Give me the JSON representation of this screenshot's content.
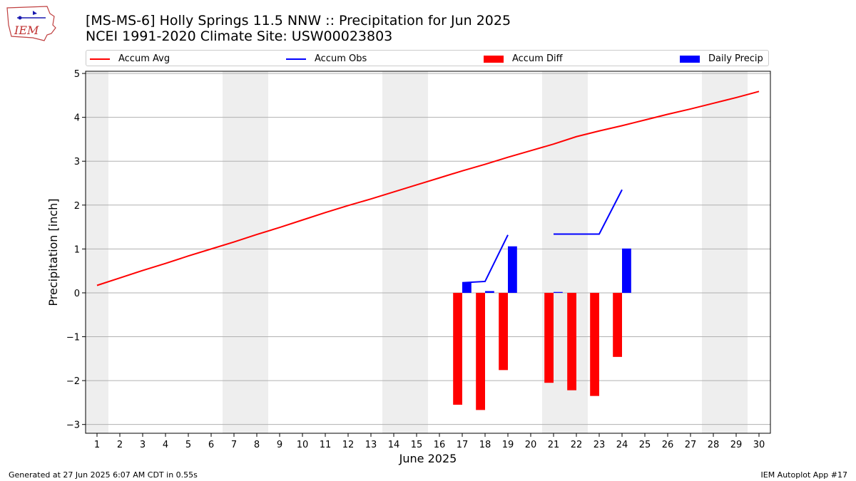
{
  "header": {
    "logo_text": "IEM",
    "title_line1": "[MS-MS-6] Holly Springs 11.5 NNW :: Precipitation for Jun 2025",
    "title_line2": "NCEI 1991-2020 Climate Site: USW00023803"
  },
  "footer": {
    "left": "Generated at 27 Jun 2025 6:07 AM CDT in 0.55s",
    "right": "IEM Autoplot App #17"
  },
  "colors": {
    "avg": "#ff0000",
    "obs": "#0000ff",
    "diff": "#ff0000",
    "daily": "#0000ff",
    "weekend": "#eeeeee",
    "grid": "#b0b0b0"
  },
  "chart_data": {
    "type": "bar",
    "xlabel": "June 2025",
    "ylabel": "Precipitation [inch]",
    "xlim": [
      0.5,
      30.5
    ],
    "ylim": [
      -3.2,
      5.05
    ],
    "yticks": [
      -3,
      -2,
      -1,
      0,
      1,
      2,
      3,
      4,
      5
    ],
    "ytick_labels": [
      "−3",
      "−2",
      "−1",
      "0",
      "1",
      "2",
      "3",
      "4",
      "5"
    ],
    "xticks": [
      1,
      2,
      3,
      4,
      5,
      6,
      7,
      8,
      9,
      10,
      11,
      12,
      13,
      14,
      15,
      16,
      17,
      18,
      19,
      20,
      21,
      22,
      23,
      24,
      25,
      26,
      27,
      28,
      29,
      30
    ],
    "grid": "horizontal",
    "legend_placement": "top",
    "weekend_spans": [
      [
        0.5,
        1.5
      ],
      [
        6.5,
        8.5
      ],
      [
        13.5,
        15.5
      ],
      [
        20.5,
        22.5
      ],
      [
        27.5,
        29.5
      ]
    ],
    "legend": {
      "avg": "Accum Avg",
      "obs": "Accum Obs",
      "diff": "Accum Diff",
      "daily": "Daily Precip"
    },
    "accum_avg": {
      "x": [
        1,
        2,
        3,
        4,
        5,
        6,
        7,
        8,
        9,
        10,
        11,
        12,
        13,
        14,
        15,
        16,
        17,
        18,
        19,
        20,
        21,
        22,
        23,
        24,
        25,
        26,
        27,
        28,
        29,
        30
      ],
      "values": [
        0.17,
        0.34,
        0.51,
        0.67,
        0.84,
        1.0,
        1.16,
        1.33,
        1.49,
        1.66,
        1.83,
        1.99,
        2.14,
        2.3,
        2.46,
        2.62,
        2.78,
        2.93,
        3.09,
        3.24,
        3.39,
        3.56,
        3.69,
        3.81,
        3.94,
        4.07,
        4.19,
        4.32,
        4.45,
        4.59
      ]
    },
    "accum_obs": [
      {
        "x": [
          17,
          18,
          19
        ],
        "values": [
          0.23,
          0.26,
          1.32
        ]
      },
      {
        "x": [
          21,
          22,
          23,
          24
        ],
        "values": [
          1.34,
          1.34,
          1.34,
          2.35
        ]
      }
    ],
    "accum_diff": {
      "x": [
        17,
        18,
        19,
        21,
        22,
        23,
        24
      ],
      "values": [
        -2.55,
        -2.67,
        -1.76,
        -2.05,
        -2.22,
        -2.35,
        -1.46
      ]
    },
    "daily_precip": {
      "x": [
        17,
        18,
        19,
        21,
        24
      ],
      "values": [
        0.23,
        0.04,
        1.06,
        0.02,
        1.01
      ]
    }
  }
}
